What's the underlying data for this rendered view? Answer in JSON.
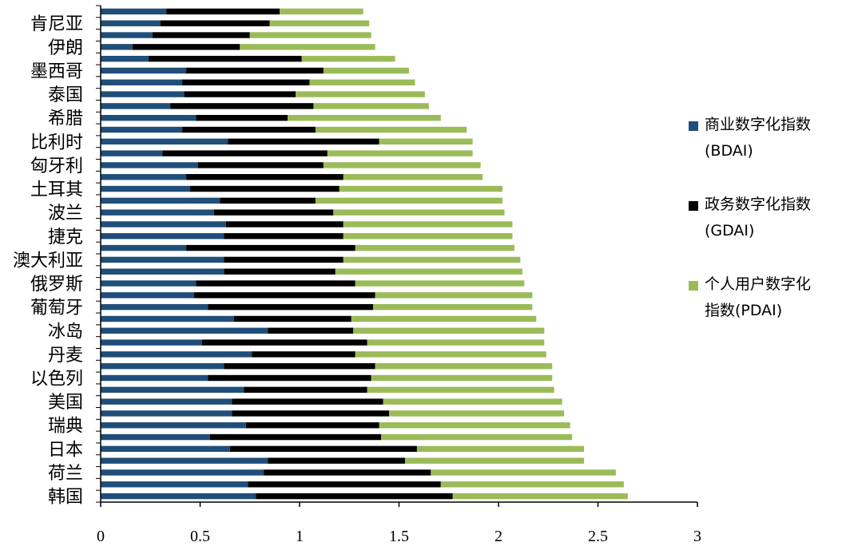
{
  "chart_data": {
    "type": "bar",
    "orientation": "horizontal",
    "stacked": true,
    "xlim": [
      0,
      3
    ],
    "x_ticks": [
      "0",
      "0.5",
      "1",
      "1.5",
      "2",
      "2.5",
      "3"
    ],
    "grid": false,
    "legend_position": "right",
    "categories": [
      "韩国",
      "",
      "荷兰",
      "",
      "日本",
      "",
      "瑞典",
      "",
      "美国",
      "",
      "以色列",
      "",
      "丹麦",
      "",
      "冰岛",
      "",
      "葡萄牙",
      "",
      "俄罗斯",
      "",
      "澳大利亚",
      "",
      "捷克",
      "",
      "波兰",
      "",
      "土耳其",
      "",
      "匈牙利",
      "",
      "比利时",
      "",
      "希腊",
      "",
      "泰国",
      "",
      "墨西哥",
      "",
      "伊朗",
      "",
      "肯尼亚",
      ""
    ],
    "series": [
      {
        "name": "商业数字化指数(BDAI)",
        "color": "#1f4e79",
        "values": [
          0.78,
          0.74,
          0.82,
          0.84,
          0.65,
          0.55,
          0.73,
          0.66,
          0.66,
          0.72,
          0.54,
          0.62,
          0.76,
          0.51,
          0.84,
          0.67,
          0.54,
          0.47,
          0.48,
          0.62,
          0.62,
          0.43,
          0.62,
          0.63,
          0.57,
          0.6,
          0.45,
          0.43,
          0.49,
          0.31,
          0.64,
          0.41,
          0.48,
          0.35,
          0.42,
          0.41,
          0.43,
          0.24,
          0.16,
          0.26,
          0.3,
          0.33
        ]
      },
      {
        "name": "政务数字化指数(GDAI)",
        "color": "#000000",
        "values": [
          0.99,
          0.97,
          0.84,
          0.69,
          0.94,
          0.86,
          0.67,
          0.79,
          0.76,
          0.62,
          0.82,
          0.76,
          0.52,
          0.83,
          0.43,
          0.59,
          0.83,
          0.91,
          0.8,
          0.56,
          0.6,
          0.85,
          0.6,
          0.59,
          0.6,
          0.48,
          0.75,
          0.79,
          0.63,
          0.83,
          0.76,
          0.67,
          0.46,
          0.72,
          0.56,
          0.64,
          0.69,
          0.77,
          0.54,
          0.49,
          0.55,
          0.57
        ]
      },
      {
        "name": "个人用户数字化指数(PDAI)",
        "color": "#9bbb59",
        "values": [
          0.88,
          0.92,
          0.93,
          0.9,
          0.84,
          0.96,
          0.96,
          0.88,
          0.9,
          0.94,
          0.91,
          0.89,
          0.96,
          0.89,
          0.96,
          0.93,
          0.8,
          0.79,
          0.85,
          0.94,
          0.89,
          0.8,
          0.85,
          0.85,
          0.86,
          0.94,
          0.82,
          0.7,
          0.79,
          0.73,
          0.47,
          0.76,
          0.77,
          0.58,
          0.65,
          0.53,
          0.43,
          0.47,
          0.68,
          0.61,
          0.5,
          0.42
        ]
      }
    ]
  },
  "legend": {
    "items": [
      {
        "line1": "商业数字化指数",
        "line2": "(BDAI)",
        "color": "#1f4e79"
      },
      {
        "line1": "政务数字化指数",
        "line2": "(GDAI)",
        "color": "#000000"
      },
      {
        "line1": "个人用户数字化",
        "line2": "指数(PDAI)",
        "color": "#9bbb59"
      }
    ]
  }
}
